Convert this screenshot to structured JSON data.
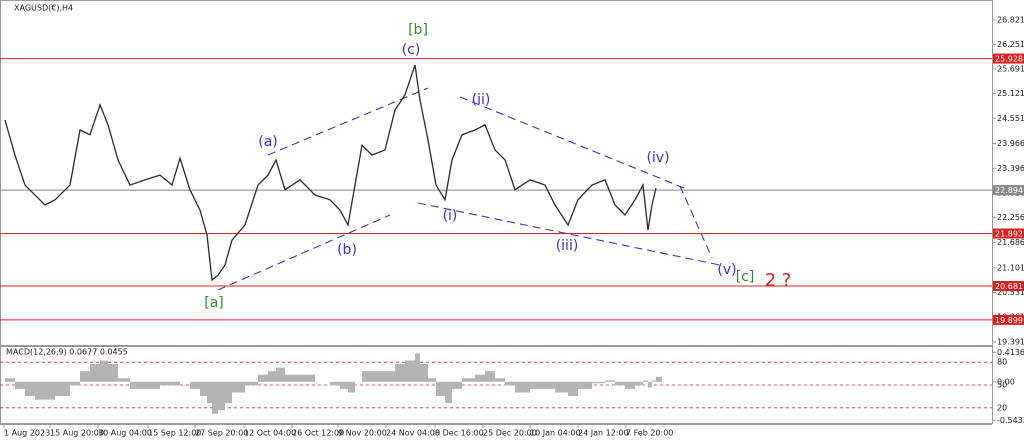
{
  "chart_data": {
    "type": "line",
    "title": "XAGUSD(€),H4",
    "x": [
      5,
      15,
      25,
      35,
      45,
      55,
      70,
      80,
      90,
      100,
      108,
      118,
      130,
      145,
      160,
      172,
      180,
      190,
      200,
      207,
      212,
      218,
      225,
      232,
      245,
      258,
      268,
      276,
      285,
      300,
      315,
      330,
      340,
      348,
      355,
      362,
      372,
      385,
      395,
      405,
      415,
      420,
      428,
      436,
      445,
      452,
      462,
      475,
      485,
      495,
      505,
      515,
      530,
      545,
      555,
      568,
      578,
      592,
      605,
      615,
      625,
      635,
      643,
      648,
      652,
      656
    ],
    "series": [
      {
        "color": "#2a2a2a",
        "values": [
          24.51,
          23.7,
          23.01,
          22.78,
          22.55,
          22.67,
          23.01,
          24.28,
          24.17,
          24.86,
          24.4,
          23.59,
          23.01,
          23.13,
          23.24,
          23.01,
          23.63,
          22.9,
          22.43,
          21.86,
          20.82,
          20.93,
          21.17,
          21.74,
          22.09,
          23.01,
          23.24,
          23.59,
          22.9,
          23.13,
          22.78,
          22.67,
          22.43,
          22.09,
          23.01,
          23.93,
          23.7,
          23.82,
          24.74,
          25.09,
          25.78,
          24.97,
          24.05,
          23.01,
          22.67,
          23.59,
          24.17,
          24.28,
          24.4,
          23.82,
          23.59,
          22.9,
          23.13,
          23.01,
          22.55,
          22.09,
          22.67,
          23.01,
          23.13,
          22.55,
          22.32,
          22.67,
          23.01,
          21.97,
          22.55,
          22.94
        ]
      }
    ],
    "xlim": [
      0,
      992
    ],
    "xticks": [
      {
        "value": 4,
        "label": "1 Aug 2023"
      },
      {
        "value": 50,
        "label": "15 Aug 20:00"
      },
      {
        "value": 98,
        "label": "30 Aug 04:00"
      },
      {
        "value": 148,
        "label": "15 Sep 12:00"
      },
      {
        "value": 195,
        "label": "27 Sep 20:00"
      },
      {
        "value": 244,
        "label": "12 Oct 04:00"
      },
      {
        "value": 292,
        "label": "26 Oct 12:00"
      },
      {
        "value": 338,
        "label": "9 Nov 20:00"
      },
      {
        "value": 386,
        "label": "24 Nov 04:00"
      },
      {
        "value": 435,
        "label": "8 Dec 16:00"
      },
      {
        "value": 483,
        "label": "25 Dec 20:00"
      },
      {
        "value": 530,
        "label": "10 Jan 04:00"
      },
      {
        "value": 578,
        "label": "24 Jan 12:00"
      },
      {
        "value": 626,
        "label": "7 Feb 20:00"
      }
    ],
    "ylim": [
      19.32,
      27.21
    ],
    "yticks": [
      19.391,
      19.961,
      20.531,
      21.101,
      21.686,
      22.256,
      22.826,
      23.396,
      23.966,
      24.551,
      25.121,
      25.691,
      26.251,
      26.821
    ],
    "levels": [
      {
        "value": 25.928,
        "color": "#e02020"
      },
      {
        "value": 21.892,
        "color": "#e02020"
      },
      {
        "value": 20.681,
        "color": "#e02020"
      },
      {
        "value": 19.899,
        "color": "#e02020"
      }
    ],
    "current_price": {
      "value": 22.894,
      "color": "#888888"
    },
    "annotations": [
      {
        "text": "[b]",
        "color": "#2e8b2e"
      },
      {
        "text": "(c)",
        "color": "#3535d0"
      },
      {
        "text": "(a)",
        "color": "#3535d0"
      },
      {
        "text": "(b)",
        "color": "#3535d0"
      },
      {
        "text": "[a]",
        "color": "#2e8b2e"
      },
      {
        "text": "(i)",
        "color": "#3535d0"
      },
      {
        "text": "(ii)",
        "color": "#3535d0"
      },
      {
        "text": "(iii)",
        "color": "#3535d0"
      },
      {
        "text": "(iv)",
        "color": "#3535d0"
      },
      {
        "text": "(v)",
        "color": "#3535d0"
      },
      {
        "text": "[c]",
        "color": "#2e8b2e"
      },
      {
        "text": "2 ?",
        "color": "#e02020"
      }
    ],
    "macd": {
      "title": "MACD(12,26,9) 0.0677 0.0455",
      "color": "#b4b4b4",
      "values": [
        0.05,
        -0.1,
        -0.2,
        -0.25,
        -0.25,
        -0.2,
        -0.05,
        0.15,
        0.25,
        0.3,
        0.25,
        0.05,
        -0.1,
        -0.1,
        -0.05,
        -0.05,
        0.0,
        -0.1,
        -0.2,
        -0.3,
        -0.45,
        -0.4,
        -0.3,
        -0.15,
        -0.05,
        0.1,
        0.15,
        0.2,
        0.1,
        0.1,
        0.0,
        -0.05,
        -0.1,
        -0.15,
        0.0,
        0.15,
        0.15,
        0.15,
        0.25,
        0.3,
        0.4,
        0.25,
        0.05,
        -0.2,
        -0.3,
        -0.1,
        0.05,
        0.1,
        0.15,
        0.05,
        -0.05,
        -0.15,
        -0.1,
        -0.1,
        -0.15,
        -0.2,
        -0.1,
        -0.02,
        0.02,
        -0.05,
        -0.1,
        -0.05,
        0.02,
        -0.08,
        0.02,
        0.07
      ],
      "ylim": [
        -0.58,
        0.49
      ],
      "yticks": [
        0.4136,
        {
          "value": 0,
          "label": "0.00"
        },
        -0.5433
      ],
      "y2lim": [
        0,
        100
      ],
      "y2ticks": [
        20,
        50,
        80
      ]
    }
  }
}
